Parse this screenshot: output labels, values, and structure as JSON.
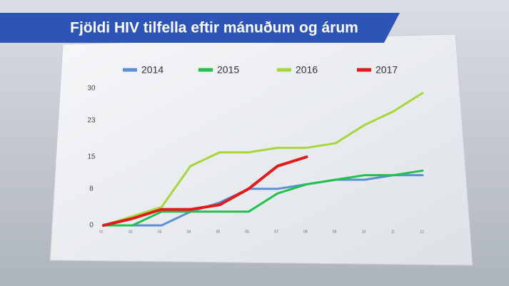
{
  "chart_data": {
    "type": "line",
    "title": "Fjöldi HIV tilfella eftir mánuðum og árum",
    "categories": [
      "01",
      "02",
      "03",
      "04",
      "05",
      "06",
      "07",
      "08",
      "09",
      "10",
      "11",
      "12"
    ],
    "series": [
      {
        "name": "2014",
        "color": "#5b8fd6",
        "values": [
          0,
          0,
          0,
          3,
          5,
          8,
          8,
          9,
          10,
          10,
          11,
          11
        ]
      },
      {
        "name": "2015",
        "color": "#1fc24a",
        "values": [
          0,
          0,
          3,
          3,
          3,
          3,
          7,
          9,
          10,
          11,
          11,
          12
        ]
      },
      {
        "name": "2016",
        "color": "#a6d63a",
        "values": [
          0,
          2,
          4,
          13,
          16,
          16,
          17,
          17,
          18,
          22,
          25,
          29
        ]
      },
      {
        "name": "2017",
        "color": "#e01b1b",
        "values": [
          0,
          1.5,
          3.5,
          3.5,
          4.5,
          8,
          13,
          15,
          null,
          null,
          null,
          null
        ]
      }
    ],
    "ylim": [
      0,
      30
    ],
    "yticks": [
      0,
      8,
      15,
      23,
      30
    ],
    "grid": false
  }
}
